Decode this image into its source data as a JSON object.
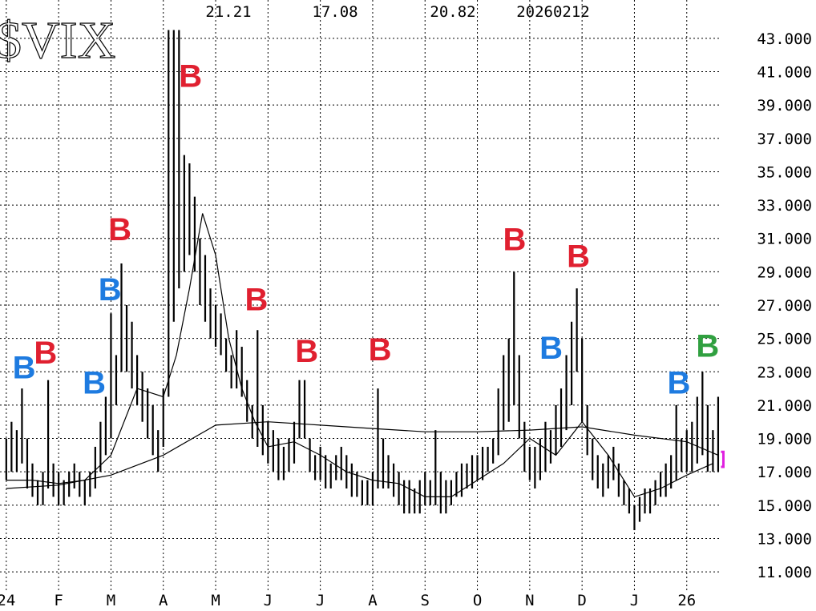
{
  "chart_data": {
    "type": "range-bar",
    "title": "$VIX",
    "header_values": [
      21.21,
      17.08,
      20.82,
      20260212
    ],
    "xlim": [
      -0.12,
      13.8
    ],
    "xticks": [
      {
        "value": 0,
        "label": "24"
      },
      {
        "value": 1,
        "label": "F"
      },
      {
        "value": 2,
        "label": "M"
      },
      {
        "value": 3,
        "label": "A"
      },
      {
        "value": 4,
        "label": "M"
      },
      {
        "value": 5,
        "label": "J"
      },
      {
        "value": 6,
        "label": "J"
      },
      {
        "value": 7,
        "label": "A"
      },
      {
        "value": 8,
        "label": "S"
      },
      {
        "value": 9,
        "label": "O"
      },
      {
        "value": 10,
        "label": "N"
      },
      {
        "value": 11,
        "label": "D"
      },
      {
        "value": 12,
        "label": "J"
      },
      {
        "value": 13,
        "label": "26"
      }
    ],
    "ylim": [
      9.9,
      45.3
    ],
    "yticks": [
      {
        "value": 11,
        "label": "11.000"
      },
      {
        "value": 13,
        "label": "13.000"
      },
      {
        "value": 15,
        "label": "15.000"
      },
      {
        "value": 17,
        "label": "17.000"
      },
      {
        "value": 19,
        "label": "19.000"
      },
      {
        "value": 21,
        "label": "21.000"
      },
      {
        "value": 23,
        "label": "23.000"
      },
      {
        "value": 25,
        "label": "25.000"
      },
      {
        "value": 27,
        "label": "27.000"
      },
      {
        "value": 29,
        "label": "29.000"
      },
      {
        "value": 31,
        "label": "31.000"
      },
      {
        "value": 33,
        "label": "33.000"
      },
      {
        "value": 35,
        "label": "35.000"
      },
      {
        "value": 37,
        "label": "37.000"
      },
      {
        "value": 39,
        "label": "39.000"
      },
      {
        "value": 41,
        "label": "41.000"
      },
      {
        "value": 43,
        "label": "43.000"
      }
    ],
    "grid": true,
    "bar_color": "#000000",
    "x": [
      0.0,
      0.1,
      0.2,
      0.3,
      0.4,
      0.5,
      0.6,
      0.7,
      0.8,
      0.9,
      1.0,
      1.1,
      1.2,
      1.3,
      1.4,
      1.5,
      1.6,
      1.7,
      1.8,
      1.9,
      2.0,
      2.1,
      2.2,
      2.3,
      2.4,
      2.5,
      2.6,
      2.7,
      2.8,
      2.9,
      3.0,
      3.1,
      3.2,
      3.3,
      3.4,
      3.5,
      3.6,
      3.7,
      3.8,
      3.9,
      4.0,
      4.1,
      4.2,
      4.3,
      4.4,
      4.5,
      4.6,
      4.7,
      4.8,
      4.9,
      5.0,
      5.1,
      5.2,
      5.3,
      5.4,
      5.5,
      5.6,
      5.7,
      5.8,
      5.9,
      6.0,
      6.1,
      6.2,
      6.3,
      6.4,
      6.5,
      6.6,
      6.7,
      6.8,
      6.9,
      7.0,
      7.1,
      7.2,
      7.3,
      7.4,
      7.5,
      7.6,
      7.7,
      7.8,
      7.9,
      8.0,
      8.1,
      8.2,
      8.3,
      8.4,
      8.5,
      8.6,
      8.7,
      8.8,
      8.9,
      9.0,
      9.1,
      9.2,
      9.3,
      9.4,
      9.5,
      9.6,
      9.7,
      9.8,
      9.9,
      10.0,
      10.1,
      10.2,
      10.3,
      10.4,
      10.5,
      10.6,
      10.7,
      10.8,
      10.9,
      11.0,
      11.1,
      11.2,
      11.3,
      11.4,
      11.5,
      11.6,
      11.7,
      11.8,
      11.9,
      12.0,
      12.1,
      12.2,
      12.3,
      12.4,
      12.5,
      12.6,
      12.7,
      12.8,
      12.9,
      13.0,
      13.1,
      13.2,
      13.3,
      13.4,
      13.5,
      13.6
    ],
    "high": [
      19,
      20,
      19.5,
      22,
      19,
      17.5,
      16.5,
      17,
      22.5,
      17.5,
      17,
      16.5,
      17,
      17.5,
      17,
      16.5,
      17,
      18.5,
      20,
      21.5,
      26.5,
      24,
      29.5,
      27,
      26,
      24,
      23,
      22,
      21,
      19.5,
      22,
      43.5,
      43.5,
      43.5,
      36,
      35.5,
      33.5,
      31,
      30,
      28,
      27,
      26.5,
      25,
      24,
      25.5,
      24.5,
      22.5,
      21,
      25.5,
      21,
      20,
      19.5,
      19,
      18.5,
      19,
      20,
      22.5,
      22.5,
      19,
      18,
      18.5,
      18,
      17.5,
      18,
      18.5,
      18,
      17.5,
      17,
      16.5,
      16.5,
      17,
      22,
      19,
      18,
      17.5,
      17,
      16.5,
      16.5,
      16,
      16.5,
      17,
      16.5,
      19.5,
      17,
      16.5,
      16.5,
      17,
      17.5,
      17.5,
      18,
      18,
      18.5,
      18.5,
      19,
      22,
      24,
      25,
      29,
      24,
      20,
      18.5,
      18.5,
      19,
      20,
      19.5,
      21,
      22,
      24,
      26,
      28,
      25,
      21,
      19,
      18,
      17.5,
      18,
      18.5,
      17.5,
      16.5,
      16,
      15,
      15.5,
      16,
      16,
      16.5,
      17,
      17.5,
      18,
      21,
      19,
      19.5,
      20,
      21.5,
      23,
      21,
      19.5,
      21.5
    ],
    "low": [
      16.5,
      17,
      17,
      17.5,
      16,
      15.5,
      15,
      15,
      16,
      15.5,
      15,
      15,
      15.5,
      16,
      15.5,
      15,
      15.5,
      16,
      17,
      18,
      19,
      21,
      23,
      23,
      22,
      21,
      20,
      19,
      18,
      17,
      18.5,
      21.5,
      26,
      28,
      29,
      30,
      29,
      27,
      26,
      25,
      24.5,
      24,
      23,
      22,
      22,
      21.5,
      20,
      19,
      18.5,
      18,
      17.5,
      17,
      16.5,
      16.5,
      17,
      17.5,
      19,
      19,
      17,
      16.5,
      16.5,
      16,
      16,
      16.5,
      16.5,
      16,
      15.5,
      15.5,
      15,
      15,
      15,
      16,
      16,
      16,
      15.5,
      15,
      14.5,
      14.5,
      14.5,
      14.5,
      15,
      15,
      15,
      14.5,
      14.5,
      15,
      15.5,
      15.5,
      16,
      16,
      16.5,
      16.5,
      17,
      17.5,
      18,
      19.5,
      20,
      21,
      19,
      17,
      16.5,
      16,
      16.5,
      17,
      17.5,
      18,
      18.5,
      19.5,
      21,
      23,
      20,
      18,
      16.5,
      16,
      15.5,
      16,
      16.5,
      15.5,
      15,
      14.5,
      13.5,
      14,
      14.5,
      14.5,
      15,
      15.5,
      15.5,
      16,
      16.5,
      17,
      17,
      17,
      17.5,
      18,
      17,
      17,
      17
    ],
    "lines": [
      {
        "color": "#000000",
        "x": [
          0,
          0.5,
          1,
          1.5,
          2,
          2.5,
          3,
          3.25,
          3.5,
          3.75,
          4,
          4.25,
          4.5,
          4.75,
          5,
          5.5,
          6,
          6.5,
          7,
          7.5,
          8,
          8.5,
          9,
          9.5,
          10,
          10.5,
          11,
          11.5,
          12,
          12.5,
          13,
          13.5
        ],
        "values": [
          16.5,
          16.5,
          16.3,
          16.5,
          18,
          22,
          21.5,
          24,
          28,
          32.5,
          30,
          25,
          22,
          20,
          18.5,
          18.8,
          18,
          17,
          16.5,
          16.3,
          15.5,
          15.5,
          16.5,
          17.5,
          19,
          18,
          20,
          18,
          15.5,
          16,
          16.8,
          17.5
        ]
      },
      {
        "color": "#000000",
        "x": [
          0,
          1,
          2,
          3,
          4,
          5,
          6,
          7,
          8,
          9,
          10,
          11,
          12,
          13,
          13.6
        ],
        "values": [
          16,
          16.2,
          16.8,
          18,
          19.8,
          20,
          19.8,
          19.6,
          19.4,
          19.4,
          19.5,
          19.7,
          19.2,
          18.8,
          18
        ]
      }
    ],
    "markers": [
      {
        "x": 0.34,
        "value": 23.1,
        "label": "B",
        "color": "#1e7be0"
      },
      {
        "x": 0.75,
        "value": 24.0,
        "label": "B",
        "color": "#e02030"
      },
      {
        "x": 1.68,
        "value": 22.2,
        "label": "B",
        "color": "#1e7be0"
      },
      {
        "x": 1.98,
        "value": 27.8,
        "label": "B",
        "color": "#1e7be0"
      },
      {
        "x": 2.17,
        "value": 31.4,
        "label": "B",
        "color": "#e02030"
      },
      {
        "x": 3.52,
        "value": 40.6,
        "label": "B",
        "color": "#e02030"
      },
      {
        "x": 4.78,
        "value": 27.2,
        "label": "B",
        "color": "#e02030"
      },
      {
        "x": 5.74,
        "value": 24.1,
        "label": "B",
        "color": "#e02030"
      },
      {
        "x": 7.14,
        "value": 24.2,
        "label": "B",
        "color": "#e02030"
      },
      {
        "x": 9.71,
        "value": 30.8,
        "label": "B",
        "color": "#e02030"
      },
      {
        "x": 10.41,
        "value": 24.3,
        "label": "B",
        "color": "#1e7be0"
      },
      {
        "x": 10.93,
        "value": 29.8,
        "label": "B",
        "color": "#e02030"
      },
      {
        "x": 12.85,
        "value": 22.2,
        "label": "B",
        "color": "#1e7be0"
      },
      {
        "x": 13.4,
        "value": 24.4,
        "label": "B",
        "color": "#30a040"
      }
    ],
    "last_range": {
      "x": 13.7,
      "low": 17.3,
      "high": 18.2,
      "color": "#e020e0"
    }
  }
}
